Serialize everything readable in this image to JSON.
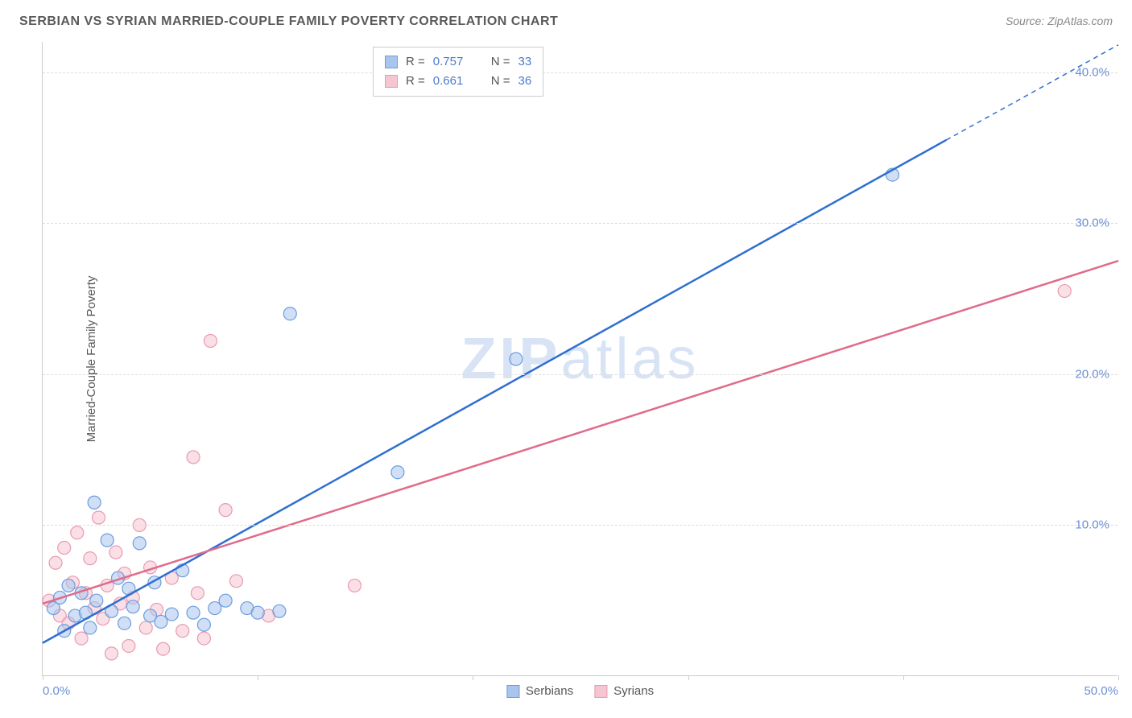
{
  "title": "SERBIAN VS SYRIAN MARRIED-COUPLE FAMILY POVERTY CORRELATION CHART",
  "source_label": "Source: ZipAtlas.com",
  "watermark": "ZIPatlas",
  "ylabel": "Married-Couple Family Poverty",
  "chart": {
    "type": "scatter",
    "background_color": "#ffffff",
    "grid_color": "#dddddd",
    "axis_color": "#cccccc",
    "tick_label_color": "#6b8fd4",
    "axis_label_color": "#555555",
    "title_color": "#5a5a5a",
    "title_fontsize": 16,
    "label_fontsize": 15,
    "tick_fontsize": 15,
    "xlim": [
      0,
      50
    ],
    "ylim": [
      0,
      42
    ],
    "yticks": [
      10,
      20,
      30,
      40
    ],
    "ytick_labels": [
      "10.0%",
      "20.0%",
      "30.0%",
      "40.0%"
    ],
    "xticks": [
      0,
      10,
      20,
      30,
      40,
      50
    ],
    "xtick_labels_shown": {
      "0": "0.0%",
      "50": "50.0%"
    },
    "marker_radius": 8,
    "marker_opacity": 0.55,
    "line_width": 2.5,
    "series": [
      {
        "name": "Serbians",
        "color_fill": "#a9c5ed",
        "color_stroke": "#6b9de0",
        "line_color": "#2f6fd0",
        "R": "0.757",
        "N": "33",
        "points": [
          [
            0.5,
            4.5
          ],
          [
            0.8,
            5.2
          ],
          [
            1.0,
            3.0
          ],
          [
            1.2,
            6.0
          ],
          [
            1.5,
            4.0
          ],
          [
            1.8,
            5.5
          ],
          [
            2.0,
            4.2
          ],
          [
            2.2,
            3.2
          ],
          [
            2.4,
            11.5
          ],
          [
            2.5,
            5.0
          ],
          [
            3.0,
            9.0
          ],
          [
            3.2,
            4.3
          ],
          [
            3.5,
            6.5
          ],
          [
            3.8,
            3.5
          ],
          [
            4.0,
            5.8
          ],
          [
            4.2,
            4.6
          ],
          [
            4.5,
            8.8
          ],
          [
            5.0,
            4.0
          ],
          [
            5.2,
            6.2
          ],
          [
            5.5,
            3.6
          ],
          [
            6.0,
            4.1
          ],
          [
            6.5,
            7.0
          ],
          [
            7.0,
            4.2
          ],
          [
            7.5,
            3.4
          ],
          [
            8.0,
            4.5
          ],
          [
            8.5,
            5.0
          ],
          [
            9.5,
            4.5
          ],
          [
            10.0,
            4.2
          ],
          [
            11.0,
            4.3
          ],
          [
            11.5,
            24.0
          ],
          [
            16.5,
            13.5
          ],
          [
            22.0,
            21.0
          ],
          [
            39.5,
            33.2
          ]
        ],
        "trend": {
          "x1": 0,
          "y1": 2.2,
          "x2": 42,
          "y2": 35.5,
          "dash_from_x": 40,
          "dash_to": [
            50,
            41.8
          ]
        }
      },
      {
        "name": "Syrians",
        "color_fill": "#f5c5d1",
        "color_stroke": "#e89bb0",
        "line_color": "#e06b8a",
        "R": "0.661",
        "N": "36",
        "points": [
          [
            0.3,
            5.0
          ],
          [
            0.6,
            7.5
          ],
          [
            0.8,
            4.0
          ],
          [
            1.0,
            8.5
          ],
          [
            1.2,
            3.5
          ],
          [
            1.4,
            6.2
          ],
          [
            1.6,
            9.5
          ],
          [
            1.8,
            2.5
          ],
          [
            2.0,
            5.5
          ],
          [
            2.2,
            7.8
          ],
          [
            2.4,
            4.5
          ],
          [
            2.6,
            10.5
          ],
          [
            2.8,
            3.8
          ],
          [
            3.0,
            6.0
          ],
          [
            3.2,
            1.5
          ],
          [
            3.4,
            8.2
          ],
          [
            3.6,
            4.8
          ],
          [
            3.8,
            6.8
          ],
          [
            4.0,
            2.0
          ],
          [
            4.2,
            5.2
          ],
          [
            4.5,
            10.0
          ],
          [
            4.8,
            3.2
          ],
          [
            5.0,
            7.2
          ],
          [
            5.3,
            4.4
          ],
          [
            5.6,
            1.8
          ],
          [
            6.0,
            6.5
          ],
          [
            6.5,
            3.0
          ],
          [
            7.0,
            14.5
          ],
          [
            7.2,
            5.5
          ],
          [
            7.5,
            2.5
          ],
          [
            7.8,
            22.2
          ],
          [
            8.5,
            11.0
          ],
          [
            9.0,
            6.3
          ],
          [
            10.5,
            4.0
          ],
          [
            14.5,
            6.0
          ],
          [
            47.5,
            25.5
          ]
        ],
        "trend": {
          "x1": 0,
          "y1": 4.8,
          "x2": 50,
          "y2": 27.5
        }
      }
    ]
  },
  "legend_top": {
    "R_label": "R =",
    "N_label": "N ="
  },
  "legend_bottom": [
    "Serbians",
    "Syrians"
  ]
}
